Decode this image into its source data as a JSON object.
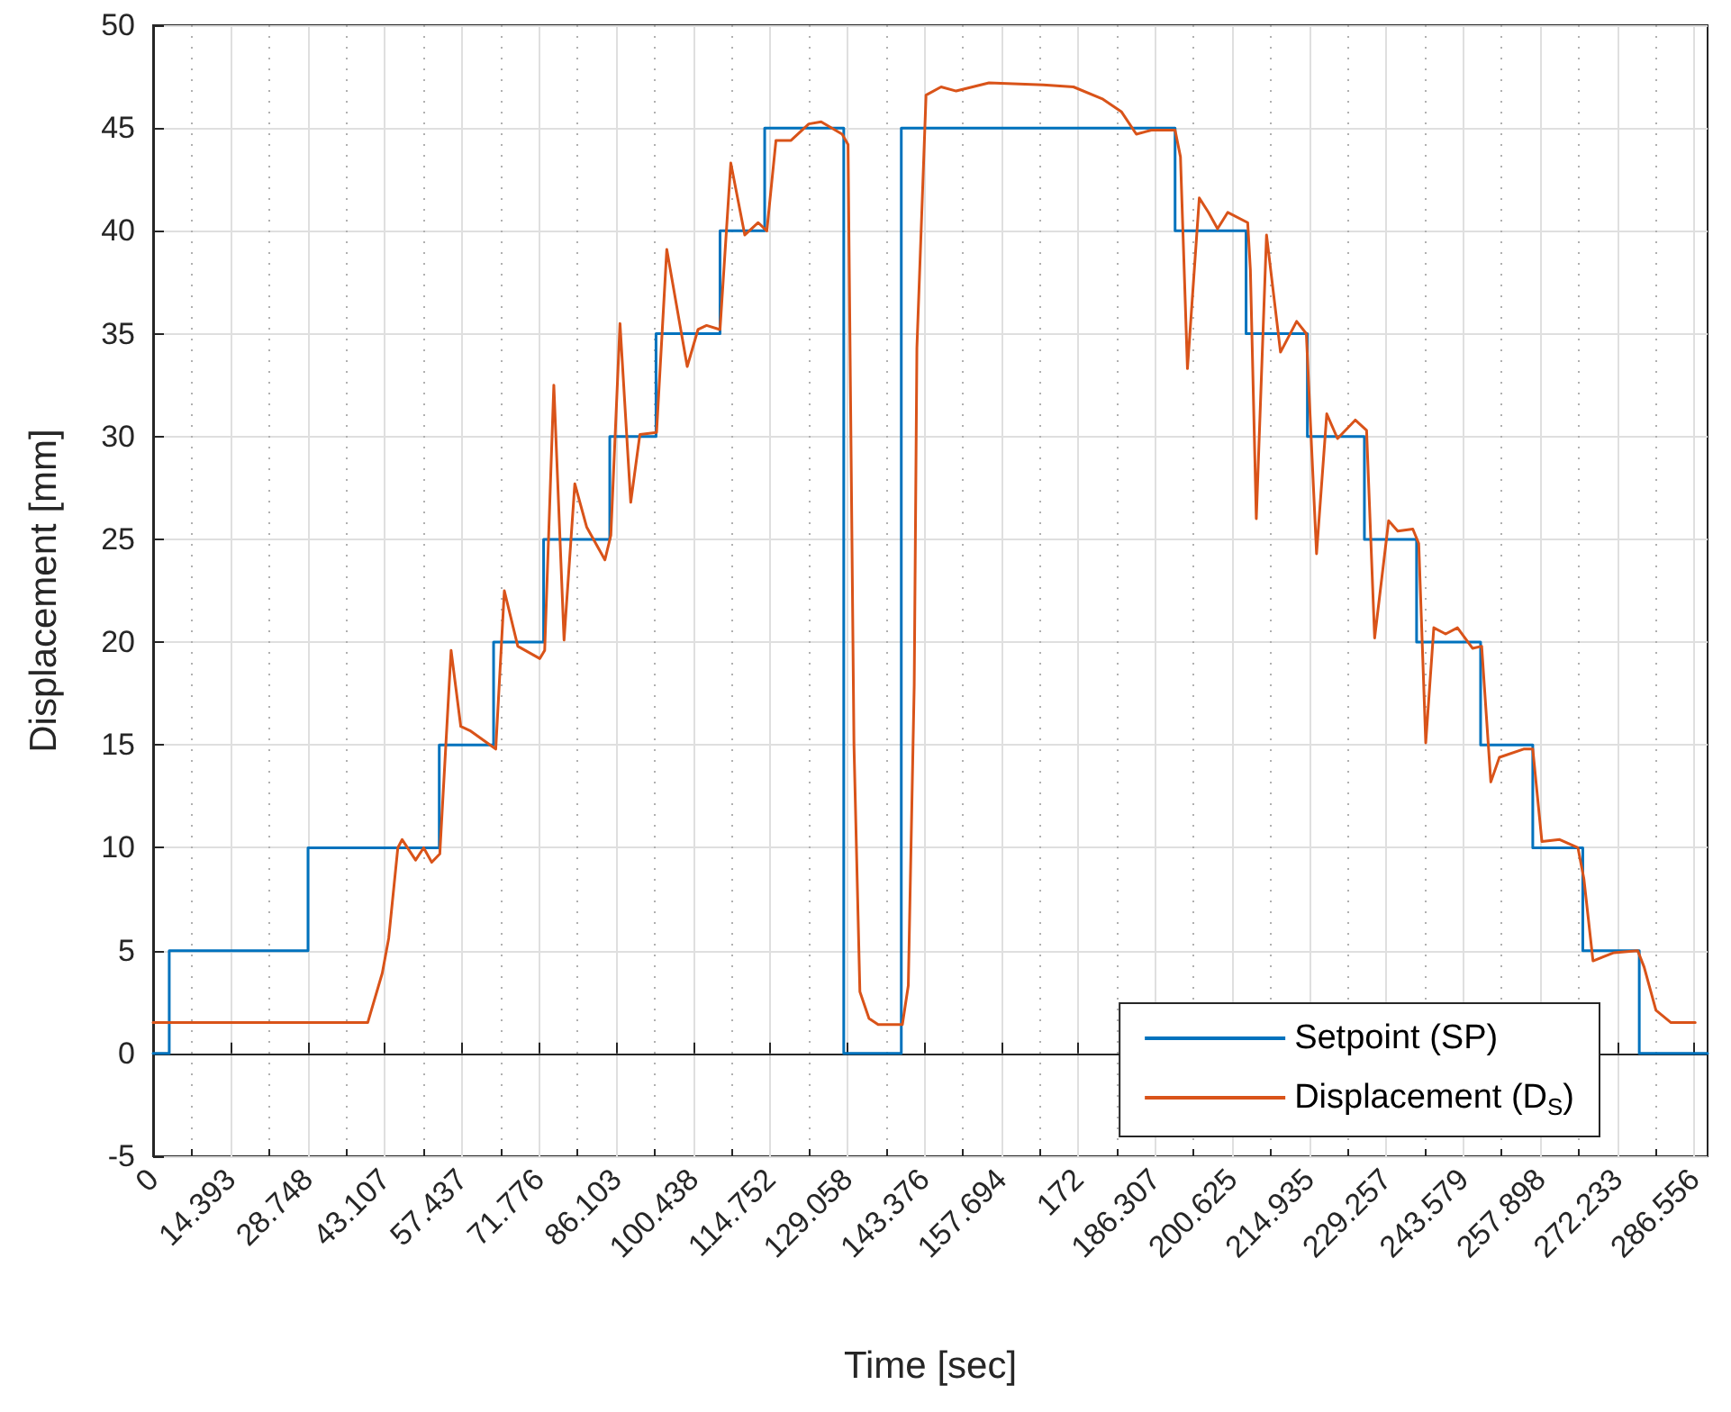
{
  "chart_data": {
    "type": "line",
    "xlabel": "Time [sec]",
    "ylabel": "Displacement [mm]",
    "xlim": [
      0,
      289
    ],
    "ylim": [
      -5,
      50
    ],
    "xticks": [
      0,
      {
        "value": 7.197,
        "label": null
      },
      14.393,
      {
        "value": 21.571,
        "label": null
      },
      28.748,
      {
        "value": 35.928,
        "label": null
      },
      43.107,
      {
        "value": 50.272,
        "label": null
      },
      57.437,
      {
        "value": 64.607,
        "label": null
      },
      71.776,
      {
        "value": 78.94,
        "label": null
      },
      86.103,
      {
        "value": 93.271,
        "label": null
      },
      100.438,
      {
        "value": 107.595,
        "label": null
      },
      114.752,
      {
        "value": 121.905,
        "label": null
      },
      129.058,
      {
        "value": 136.217,
        "label": null
      },
      143.376,
      {
        "value": 150.535,
        "label": null
      },
      157.694,
      {
        "value": 164.847,
        "label": null
      },
      172,
      {
        "value": 179.154,
        "label": null
      },
      186.307,
      {
        "value": 193.466,
        "label": null
      },
      200.625,
      {
        "value": 207.78,
        "label": null
      },
      214.935,
      {
        "value": 222.096,
        "label": null
      },
      229.257,
      {
        "value": 236.418,
        "label": null
      },
      243.579,
      {
        "value": 250.739,
        "label": null
      },
      257.898,
      {
        "value": 265.066,
        "label": null
      },
      272.233,
      {
        "value": 279.395,
        "label": null
      },
      286.556
    ],
    "yticks": [
      -5,
      0,
      5,
      10,
      15,
      20,
      25,
      30,
      35,
      40,
      45,
      50
    ],
    "grid": true,
    "legend": "bottom right",
    "marker": "none",
    "line_style": "solid",
    "series": [
      {
        "name": "Setpoint (SP)",
        "type": "step",
        "color": "#0072bd",
        "x": [
          0,
          3.0,
          28.8,
          53.2,
          63.3,
          72.6,
          84.9,
          93.5,
          105.4,
          113.7,
          128.4,
          139.1,
          190.0,
          203.2,
          214.6,
          225.2,
          234.9,
          246.8,
          256.5,
          265.8,
          276.3,
          289
        ],
        "values": [
          0,
          5,
          10,
          15,
          20,
          25,
          30,
          35,
          40,
          45,
          0,
          45,
          40,
          35,
          30,
          25,
          20,
          15,
          10,
          5,
          0,
          0
        ]
      },
      {
        "name": "Displacement (D$_{S}$)",
        "type": "line",
        "color": "#d95319",
        "x": [
          0,
          39.9,
          42.6,
          43.8,
          45.5,
          46.3,
          48.8,
          50.3,
          51.8,
          53.3,
          55.4,
          57.2,
          58.9,
          63.7,
          65.3,
          67.8,
          71.9,
          72.8,
          74.5,
          76.4,
          78.4,
          80.6,
          84.0,
          85.1,
          86.8,
          88.8,
          90.5,
          93.6,
          95.5,
          99.3,
          101.3,
          102.9,
          105.4,
          107.4,
          110.0,
          112.5,
          114.1,
          115.8,
          118.6,
          121.9,
          124.2,
          128.1,
          129.2,
          130.3,
          131.4,
          133.1,
          134.8,
          139.3,
          140.4,
          141.5,
          142.0,
          143.7,
          146.5,
          149.3,
          155.4,
          165.5,
          171.1,
          176.6,
          180.0,
          182.8,
          185.6,
          190.0,
          191.0,
          192.3,
          194.5,
          196.2,
          197.9,
          199.8,
          203.5,
          204.0,
          205.1,
          207.0,
          209.6,
          212.6,
          214.4,
          216.3,
          218.2,
          220.2,
          223.5,
          225.6,
          227.1,
          229.7,
          231.4,
          234.2,
          235.3,
          236.6,
          238.1,
          240.3,
          242.5,
          245.3,
          247.0,
          248.7,
          250.3,
          254.8,
          256.5,
          258.2,
          261.5,
          264.9,
          266.0,
          267.7,
          271.6,
          276.0,
          277.2,
          279.4,
          282.2,
          286.7
        ],
        "values": [
          1.5,
          1.5,
          3.9,
          5.6,
          10.0,
          10.4,
          9.4,
          10.0,
          9.3,
          9.7,
          19.6,
          15.9,
          15.7,
          14.8,
          22.5,
          19.8,
          19.2,
          19.6,
          32.5,
          20.1,
          27.7,
          25.6,
          24.0,
          25.2,
          35.5,
          26.8,
          30.1,
          30.2,
          39.1,
          33.4,
          35.2,
          35.4,
          35.2,
          43.3,
          39.8,
          40.4,
          40.0,
          44.4,
          44.4,
          45.2,
          45.3,
          44.7,
          44.2,
          15.0,
          3.0,
          1.7,
          1.4,
          1.4,
          3.3,
          17.9,
          34.3,
          46.6,
          47.0,
          46.8,
          47.2,
          47.1,
          47.0,
          46.4,
          45.8,
          44.7,
          44.9,
          44.9,
          43.6,
          33.3,
          41.6,
          40.9,
          40.1,
          40.9,
          40.4,
          38.1,
          26.0,
          39.8,
          34.1,
          35.6,
          35.0,
          24.3,
          31.1,
          29.9,
          30.8,
          30.3,
          20.2,
          25.9,
          25.4,
          25.5,
          24.8,
          15.1,
          20.7,
          20.4,
          20.7,
          19.7,
          19.8,
          13.2,
          14.4,
          14.8,
          14.8,
          10.3,
          10.4,
          10.0,
          8.5,
          4.5,
          4.9,
          5.0,
          4.2,
          2.1,
          1.5,
          1.5
        ]
      }
    ]
  }
}
